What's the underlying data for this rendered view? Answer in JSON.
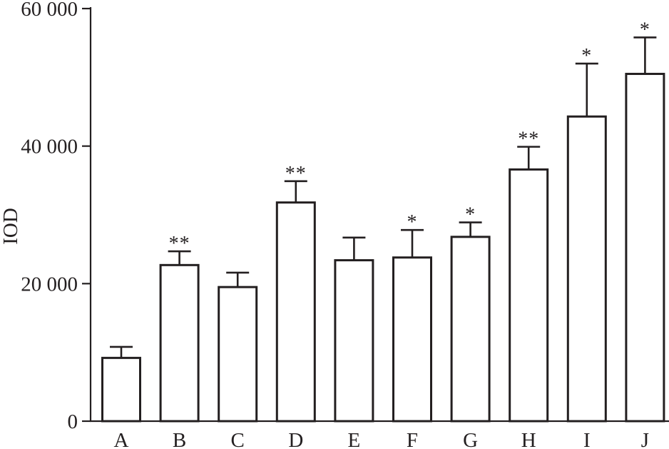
{
  "chart_data": {
    "type": "bar",
    "title": "",
    "xlabel": "",
    "ylabel": "IOD",
    "ylim": [
      0,
      60000
    ],
    "yticks": [
      0,
      20000,
      40000,
      60000
    ],
    "ytick_labels": [
      "0",
      "20 000",
      "40 000",
      "60 000"
    ],
    "categories": [
      "A",
      "B",
      "C",
      "D",
      "E",
      "F",
      "G",
      "H",
      "I",
      "J"
    ],
    "values": [
      9200,
      22700,
      19500,
      31800,
      23400,
      23800,
      26800,
      36600,
      44300,
      50500
    ],
    "error": [
      1600,
      2000,
      2100,
      3100,
      3300,
      4000,
      2100,
      3300,
      7700,
      5300
    ],
    "significance": [
      "",
      "**",
      "",
      "**",
      "",
      "*",
      "*",
      "**",
      "*",
      "*"
    ],
    "grid": false,
    "legend": "none"
  }
}
